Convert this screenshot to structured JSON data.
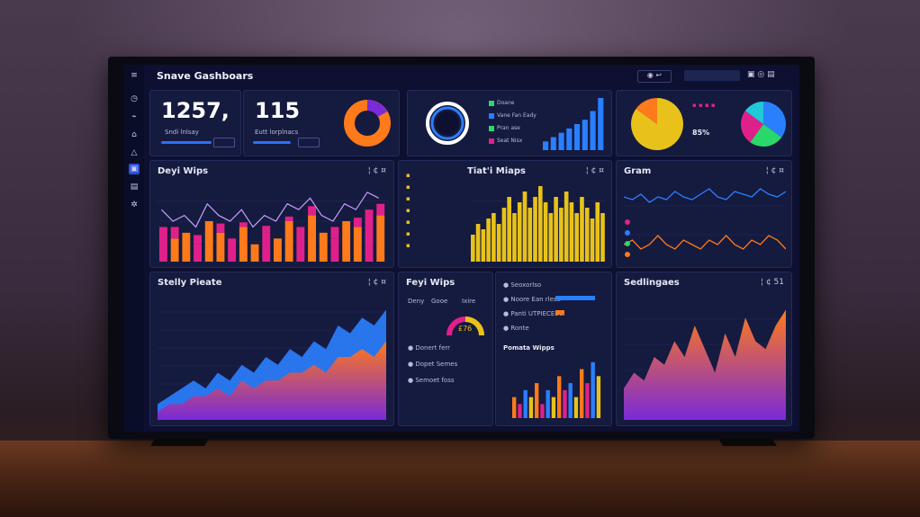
{
  "header": {
    "title": "Snave Gashboars",
    "logo_glyph": "≡"
  },
  "sidebar": {
    "icons": [
      "clock-icon",
      "chart-icon",
      "home-icon",
      "alert-icon",
      "dashboard-icon",
      "file-icon",
      "settings-icon"
    ]
  },
  "kpis": [
    {
      "value": "1257,",
      "label": "Sndi lnlsay"
    },
    {
      "value": "115",
      "label": "Eutt lorplnacs"
    }
  ],
  "panels": {
    "days_wips": {
      "title": "Deyi Wips",
      "ctrl": "¦ ¢ ¤"
    },
    "tiat_wiaps": {
      "title": "Tiat'i Miaps",
      "ctrl": "¦ ¢ ¤"
    },
    "gram": {
      "title": "Gram",
      "ctrl": "¦ ¢ ¤"
    },
    "stelly_pieate": {
      "title": "Stelly Pieate",
      "ctrl": "¦ ¢ ¤"
    },
    "feyi_wips": {
      "title": "Feyi Wips"
    },
    "pomata_wipps": {
      "title": "Pomata Wipps"
    },
    "sedlingaes": {
      "title": "Sedlingaes",
      "ctrl": "¦ ¢ 51"
    }
  },
  "gauge": {
    "value": "£76",
    "labels": [
      "Deny",
      "Gooe",
      "Ixire"
    ]
  },
  "feyi_list": [
    "Donert ferr",
    "Dopet Semes",
    "Semoet foss"
  ],
  "pie_label": "85%",
  "donut_legend": [
    "Doane",
    "Vane Fan Eady",
    "Pran ase",
    "Seat Nisx"
  ],
  "kpi_right_list": [
    "Seoxorlso",
    "Noore Ean rlese",
    "Panti UTPIECEECI",
    "Ronte"
  ],
  "colors": {
    "orange": "#ff7a1a",
    "magenta": "#e0208a",
    "yellow": "#e8c21a",
    "blue": "#2a7fff",
    "purple": "#7a2ad8",
    "green": "#2ad86a"
  },
  "chart_data": [
    {
      "type": "bar",
      "title": "Deyi Wips",
      "series": [
        {
          "values": [
            6,
            4,
            5,
            3,
            7,
            5,
            4,
            6,
            3,
            5,
            4,
            7,
            6,
            8,
            5,
            4,
            7,
            6,
            9,
            8
          ]
        },
        {
          "values": [
            3,
            5,
            2,
            4,
            2,
            4,
            3,
            2,
            4,
            3,
            5,
            2,
            3,
            4,
            6,
            5,
            3,
            4,
            3,
            5
          ]
        }
      ]
    },
    {
      "type": "bar",
      "title": "Tiat'i Miaps",
      "values": [
        5,
        7,
        6,
        8,
        9,
        7,
        10,
        12,
        9,
        11,
        13,
        10,
        12,
        14,
        11,
        9,
        12,
        10,
        13,
        11,
        9,
        12,
        10,
        8,
        11,
        9
      ]
    },
    {
      "type": "line",
      "title": "Gram",
      "series": [
        {
          "values": [
            6,
            5,
            7,
            4,
            6,
            5,
            8,
            6,
            5,
            7,
            9,
            6,
            5,
            8,
            7,
            6,
            9,
            7,
            6,
            8
          ]
        },
        {
          "values": [
            3,
            4,
            2,
            3,
            5,
            3,
            2,
            4,
            3,
            2,
            4,
            3,
            5,
            3,
            2,
            4,
            3,
            5,
            4,
            2
          ]
        }
      ]
    },
    {
      "type": "area",
      "title": "Stelly Pieate",
      "series": [
        {
          "values": [
            2,
            3,
            4,
            5,
            4,
            6,
            5,
            7,
            6,
            8,
            7,
            9,
            8,
            10,
            9,
            12,
            11,
            13,
            12,
            14
          ]
        },
        {
          "values": [
            1,
            2,
            2,
            3,
            3,
            4,
            3,
            5,
            4,
            5,
            5,
            6,
            6,
            7,
            6,
            8,
            8,
            9,
            8,
            10
          ]
        }
      ]
    },
    {
      "type": "area",
      "title": "Sedlingaes",
      "values": [
        4,
        6,
        5,
        8,
        7,
        10,
        8,
        12,
        9,
        6,
        11,
        8,
        13,
        10,
        9,
        12,
        14
      ]
    },
    {
      "type": "bar",
      "title": "Pomata Wipps",
      "values": [
        3,
        2,
        4,
        3,
        5,
        2,
        4,
        3,
        6,
        4,
        5,
        3,
        7,
        5,
        8,
        6
      ]
    },
    {
      "type": "pie",
      "title": "",
      "values": [
        85,
        15
      ]
    },
    {
      "type": "pie",
      "title": "",
      "values": [
        35,
        25,
        25,
        15
      ]
    }
  ]
}
